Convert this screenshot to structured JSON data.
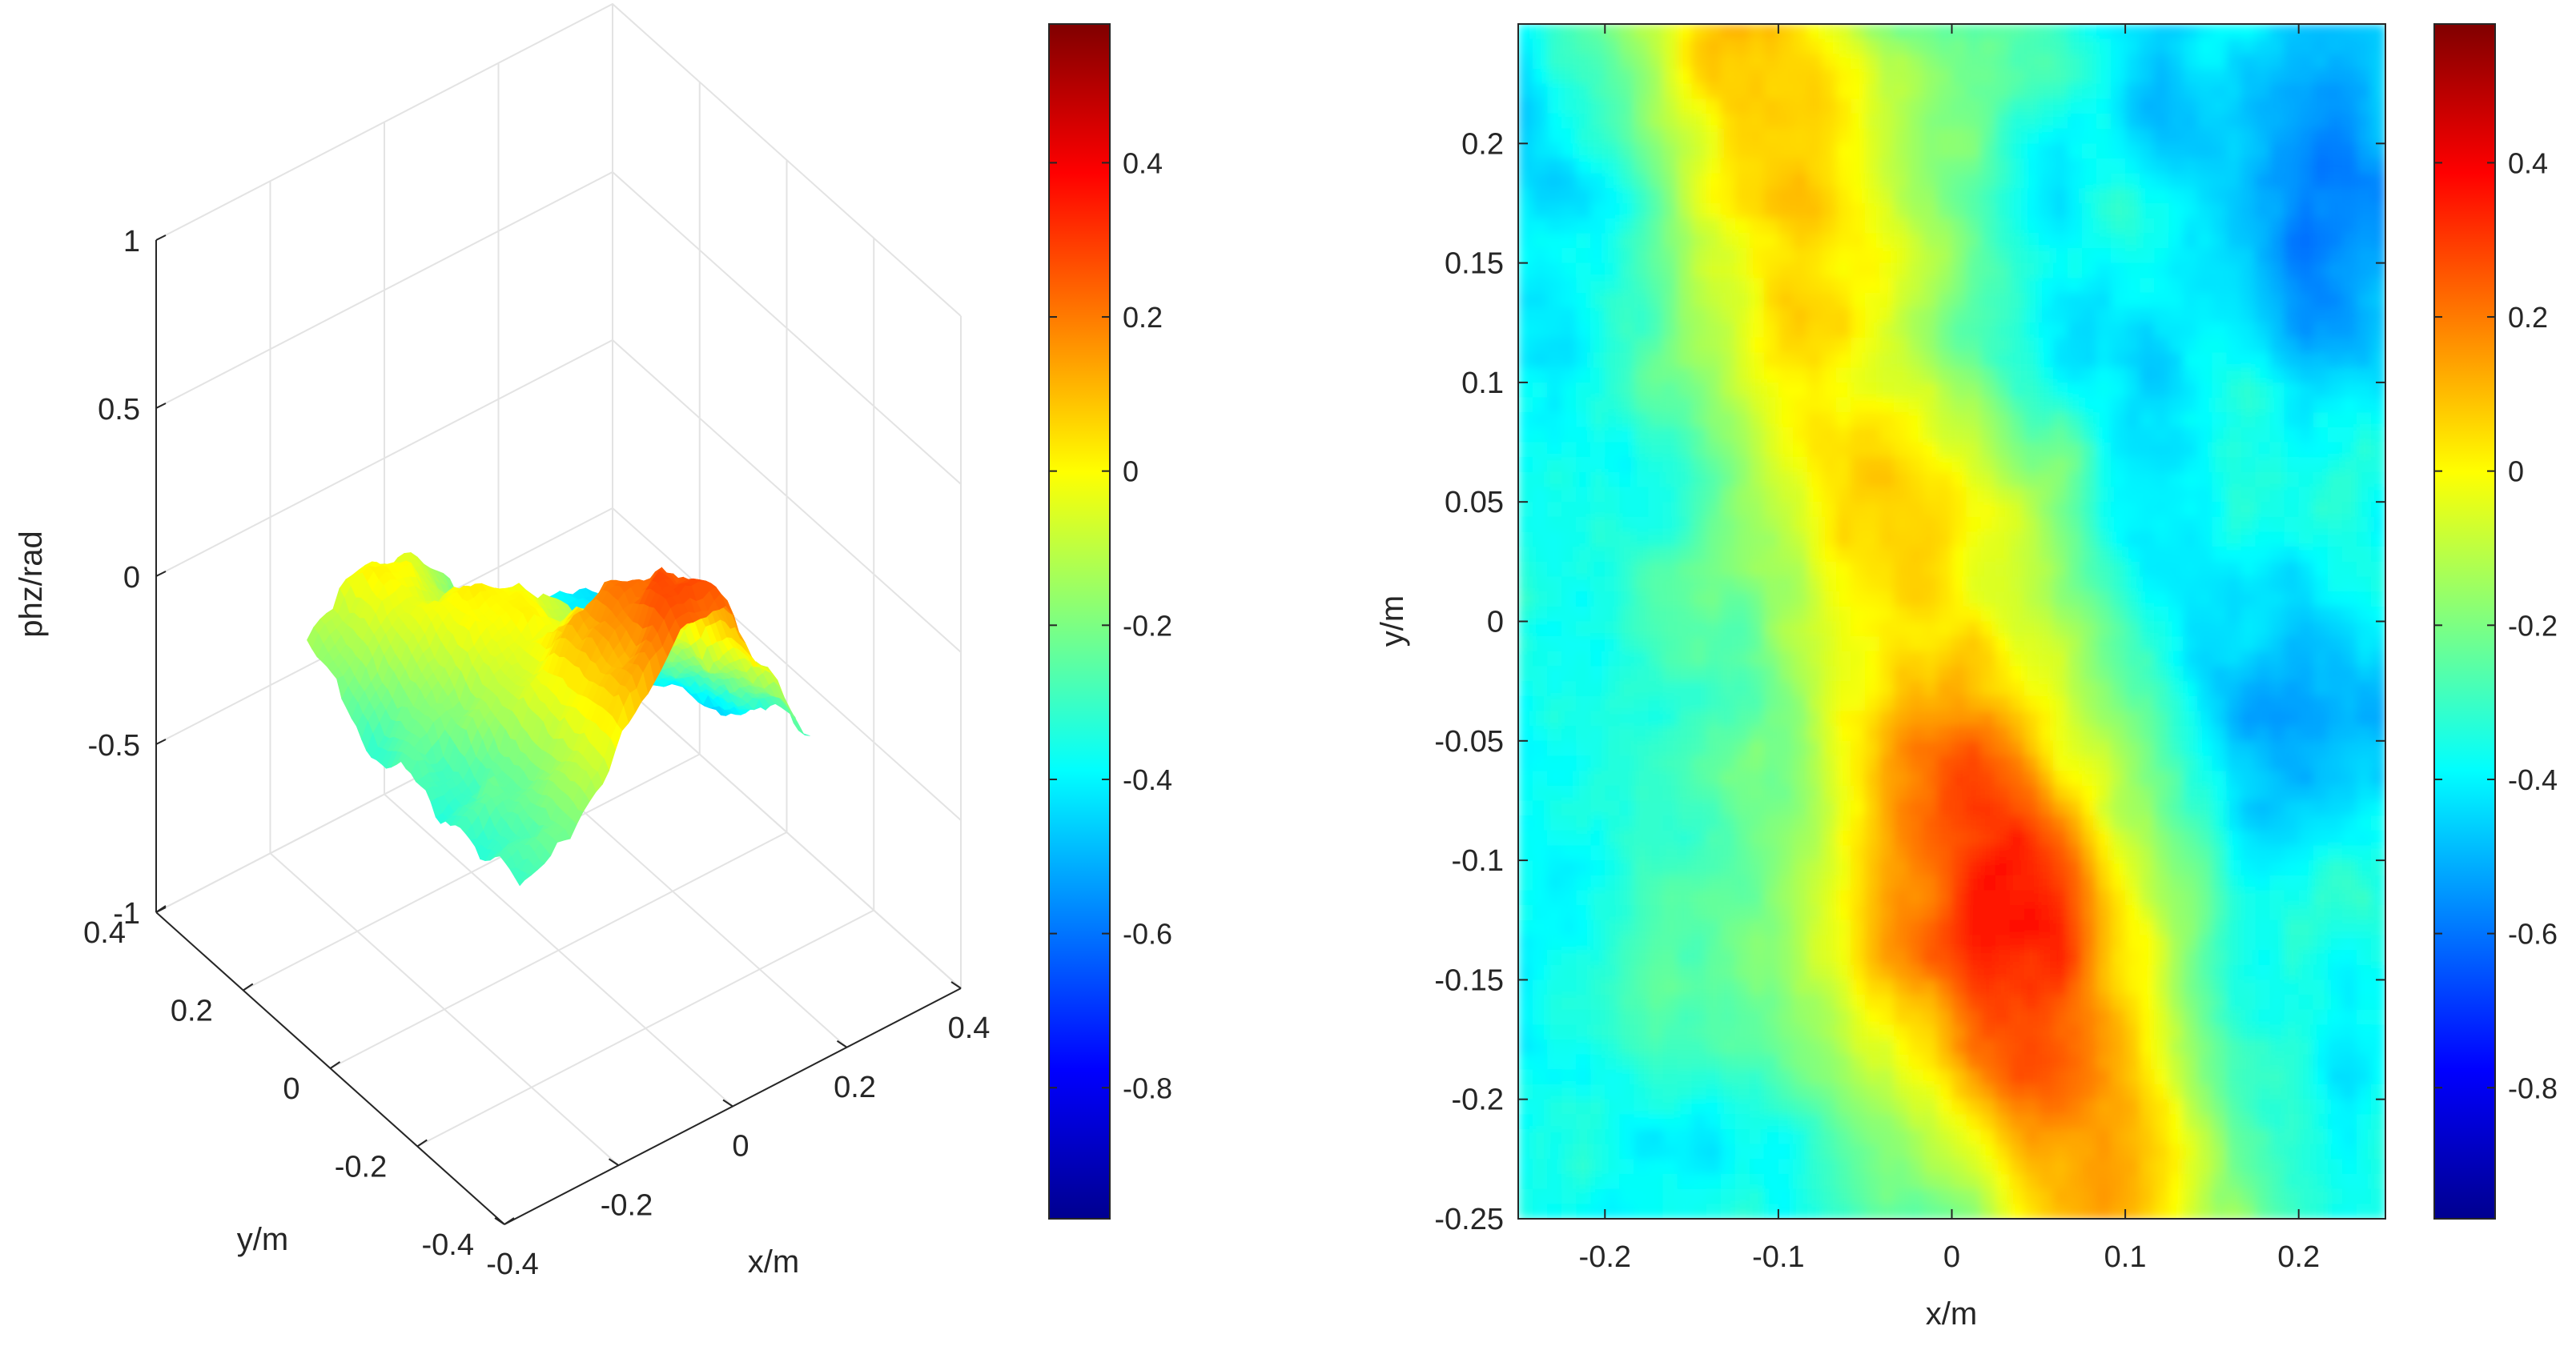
{
  "chart_data": [
    {
      "type": "surface3d",
      "zlabel": "phz/rad",
      "xlabel": "x/m",
      "ylabel": "y/m",
      "x_ticks": [
        "-0.4",
        "-0.2",
        "0",
        "0.2",
        "0.4"
      ],
      "y_ticks": [
        "-0.4",
        "-0.2",
        "0",
        "0.2",
        "0.4"
      ],
      "z_ticks": [
        "-1",
        "-0.5",
        "0",
        "0.5",
        "1"
      ],
      "xlim": [
        -0.4,
        0.4
      ],
      "ylim": [
        -0.4,
        0.4
      ],
      "zlim": [
        -1,
        1
      ],
      "colormap": "jet",
      "grid": true,
      "colorbar": {
        "ticks": [
          "0.4",
          "0.2",
          "0",
          "-0.2",
          "-0.4",
          "-0.6",
          "-0.8"
        ],
        "tick_values": [
          0.4,
          0.2,
          0,
          -0.2,
          -0.4,
          -0.6,
          -0.8
        ],
        "range": [
          -0.97,
          0.58
        ]
      }
    },
    {
      "type": "heatmap",
      "xlabel": "x/m",
      "ylabel": "y/m",
      "x_ticks": [
        "-0.2",
        "-0.1",
        "0",
        "0.1",
        "0.2"
      ],
      "x_tick_values": [
        -0.2,
        -0.1,
        0,
        0.1,
        0.2
      ],
      "y_ticks": [
        "0.2",
        "0.15",
        "0.1",
        "0.05",
        "0",
        "-0.05",
        "-0.1",
        "-0.15",
        "-0.2",
        "-0.25"
      ],
      "y_tick_values": [
        0.2,
        0.15,
        0.1,
        0.05,
        0,
        -0.05,
        -0.1,
        -0.15,
        -0.2,
        -0.25
      ],
      "xlim": [
        -0.25,
        0.25
      ],
      "ylim": [
        -0.25,
        0.25
      ],
      "colormap": "jet",
      "values_range": [
        -0.97,
        0.58
      ],
      "colorbar": {
        "ticks": [
          "0.4",
          "0.2",
          "0",
          "-0.2",
          "-0.4",
          "-0.6",
          "-0.8"
        ],
        "tick_values": [
          0.4,
          0.2,
          0,
          -0.2,
          -0.4,
          -0.6,
          -0.8
        ],
        "range": [
          -0.97,
          0.58
        ]
      }
    }
  ]
}
